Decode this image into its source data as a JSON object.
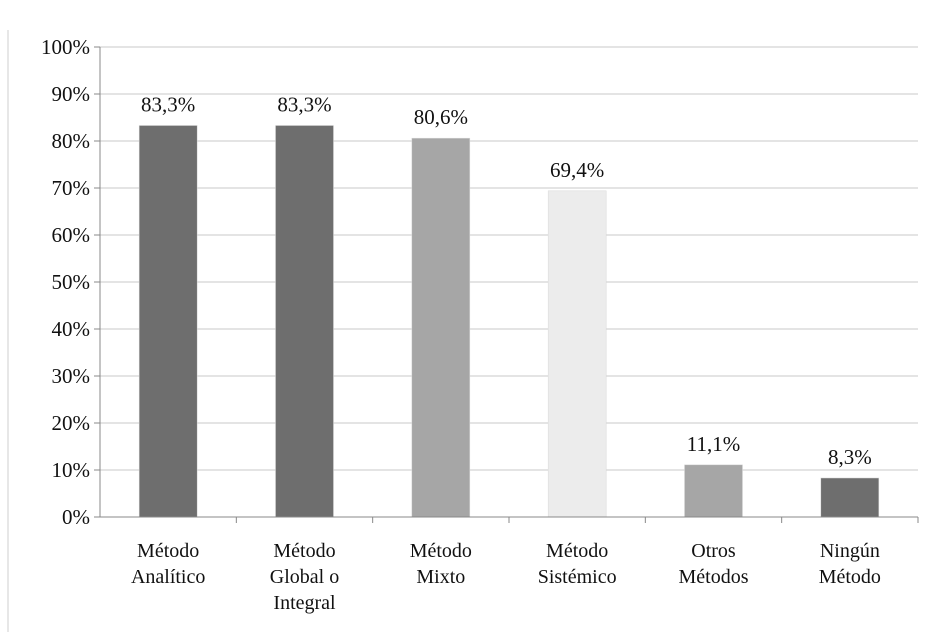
{
  "chart_data": {
    "type": "bar",
    "title": "",
    "xlabel": "",
    "ylabel": "",
    "ylim": [
      0,
      100
    ],
    "y_ticks": [
      "0%",
      "10%",
      "20%",
      "30%",
      "40%",
      "50%",
      "60%",
      "70%",
      "80%",
      "90%",
      "100%"
    ],
    "grid": true,
    "legend": "none",
    "categories": [
      [
        "Método",
        "Analítico"
      ],
      [
        "Método",
        "Global o",
        "Integral"
      ],
      [
        "Método",
        "Mixto"
      ],
      [
        "Método",
        "Sistémico"
      ],
      [
        "Otros",
        "Métodos"
      ],
      [
        "Ningún",
        "Método"
      ]
    ],
    "values": [
      83.3,
      83.3,
      80.6,
      69.4,
      11.1,
      8.3
    ],
    "data_labels": [
      "83,3%",
      "83,3%",
      "80,6%",
      "69,4%",
      "11,1%",
      "8,3%"
    ],
    "bar_colors": [
      "#6e6e6e",
      "#6e6e6e",
      "#a6a6a6",
      "#ececec",
      "#a6a6a6",
      "#6e6e6e"
    ]
  }
}
